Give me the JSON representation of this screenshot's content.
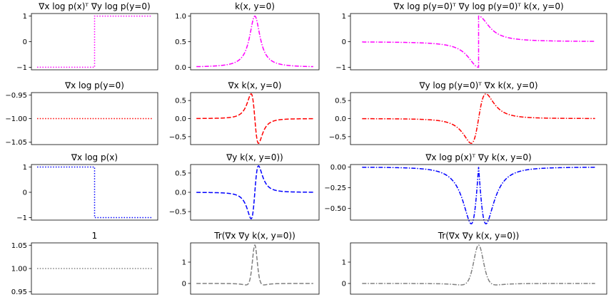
{
  "chart_data": [
    {
      "id": "r0c0",
      "type": "line",
      "title": "∇x log p(x)ᵀ ∇y log p(y=0)",
      "color": "#ff00ff",
      "linestyle": "dotted",
      "curve": "step_up",
      "x": [
        -5,
        0,
        5
      ],
      "ylim": [
        -1.1,
        1.1
      ],
      "yticks": [
        1,
        0,
        -1
      ],
      "ytick_labels": [
        "1",
        "0",
        "−1"
      ]
    },
    {
      "id": "r0c1",
      "type": "line",
      "title": "k(x, y=0)",
      "color": "#ff00ff",
      "linestyle": "dashdot",
      "curve": "kernel",
      "x": [
        -5,
        0,
        5
      ],
      "ylim": [
        -0.05,
        1.05
      ],
      "yticks": [
        1.0,
        0.5,
        0.0
      ],
      "ytick_labels": [
        "1.0",
        "0.5",
        "0.0"
      ]
    },
    {
      "id": "r0c2",
      "type": "line",
      "title": "∇x log p(y=0)ᵀ ∇y log p(y=0)ᵀ k(x, y=0)",
      "color": "#ff00ff",
      "linestyle": "dashdot",
      "curve": "signed_kernel",
      "x": [
        -5,
        0,
        5
      ],
      "ylim": [
        -1.1,
        1.1
      ],
      "yticks": [
        1,
        0,
        -1
      ],
      "ytick_labels": [
        "1",
        "0",
        "−1"
      ]
    },
    {
      "id": "r1c0",
      "type": "line",
      "title": "∇x log p(y=0)",
      "color": "#ff0000",
      "linestyle": "dotted",
      "curve": "constant_neg1",
      "x": [
        -5,
        0,
        5
      ],
      "ylim": [
        -1.055,
        -0.945
      ],
      "yticks": [
        -0.95,
        -1.0,
        -1.05
      ],
      "ytick_labels": [
        "−0.95",
        "−1.00",
        "−1.05"
      ]
    },
    {
      "id": "r1c1",
      "type": "line",
      "title": "∇x k(x, y=0)",
      "color": "#ff0000",
      "linestyle": "dashed",
      "curve": "grad_x_kernel",
      "x": [
        -5,
        0,
        5
      ],
      "ylim": [
        -0.72,
        0.72
      ],
      "yticks": [
        0.5,
        0.0,
        -0.5
      ],
      "ytick_labels": [
        "0.5",
        "0.0",
        "−0.5"
      ]
    },
    {
      "id": "r1c2",
      "type": "line",
      "title": "∇y log p(y=0)ᵀ ∇x k(x, y=0)",
      "color": "#ff0000",
      "linestyle": "dashdot",
      "curve": "grad_y_kernel",
      "x": [
        -5,
        0,
        5
      ],
      "ylim": [
        -0.72,
        0.72
      ],
      "yticks": [
        0.5,
        0.0,
        -0.5
      ],
      "ytick_labels": [
        "0.5",
        "0.0",
        "−0.5"
      ]
    },
    {
      "id": "r2c0",
      "type": "line",
      "title": "∇x log p(x)",
      "color": "#0000ff",
      "linestyle": "dotted",
      "curve": "step_down",
      "x": [
        -5,
        0,
        5
      ],
      "ylim": [
        -1.1,
        1.1
      ],
      "yticks": [
        1,
        0,
        -1
      ],
      "ytick_labels": [
        "1",
        "0",
        "−1"
      ]
    },
    {
      "id": "r2c1",
      "type": "line",
      "title": "∇y k(x, y=0))",
      "color": "#0000ff",
      "linestyle": "dashed",
      "curve": "grad_y_kernel",
      "x": [
        -5,
        0,
        5
      ],
      "ylim": [
        -0.72,
        0.72
      ],
      "yticks": [
        0.5,
        0.0,
        -0.5
      ],
      "ytick_labels": [
        "0.5",
        "0.0",
        "−0.5"
      ]
    },
    {
      "id": "r2c2",
      "type": "line",
      "title": "∇x log p(x)ᵀ ∇y k(x, y=0)",
      "color": "#0000ff",
      "linestyle": "dashdot",
      "curve": "double_dip",
      "x": [
        -5,
        0,
        5
      ],
      "ylim": [
        -0.64,
        0.03
      ],
      "yticks": [
        0.0,
        -0.25,
        -0.5
      ],
      "ytick_labels": [
        "0.00",
        "−0.25",
        "−0.50"
      ]
    },
    {
      "id": "r3c0",
      "type": "line",
      "title": "1",
      "color": "#808080",
      "linestyle": "dotted",
      "curve": "constant_pos1",
      "x": [
        -5,
        0,
        5
      ],
      "ylim": [
        0.945,
        1.055
      ],
      "yticks": [
        1.05,
        1.0,
        0.95
      ],
      "ytick_labels": [
        "1.05",
        "1.00",
        "0.95"
      ]
    },
    {
      "id": "r3c1",
      "type": "line",
      "title": "Tr(∇x ∇y k(x, y=0))",
      "color": "#808080",
      "linestyle": "dashed",
      "curve": "trace_kernel",
      "x": [
        -5,
        0,
        5
      ],
      "ylim": [
        -0.5,
        1.9
      ],
      "yticks": [
        1,
        0
      ],
      "ytick_labels": [
        "1",
        "0"
      ]
    },
    {
      "id": "r3c2",
      "type": "line",
      "title": "Tr(∇x ∇y k(x, y=0))",
      "color": "#808080",
      "linestyle": "dashdot",
      "curve": "trace_kernel",
      "x": [
        -5,
        0,
        5
      ],
      "ylim": [
        -0.5,
        1.9
      ],
      "yticks": [
        1,
        0
      ],
      "ytick_labels": [
        "1",
        "0"
      ]
    }
  ]
}
